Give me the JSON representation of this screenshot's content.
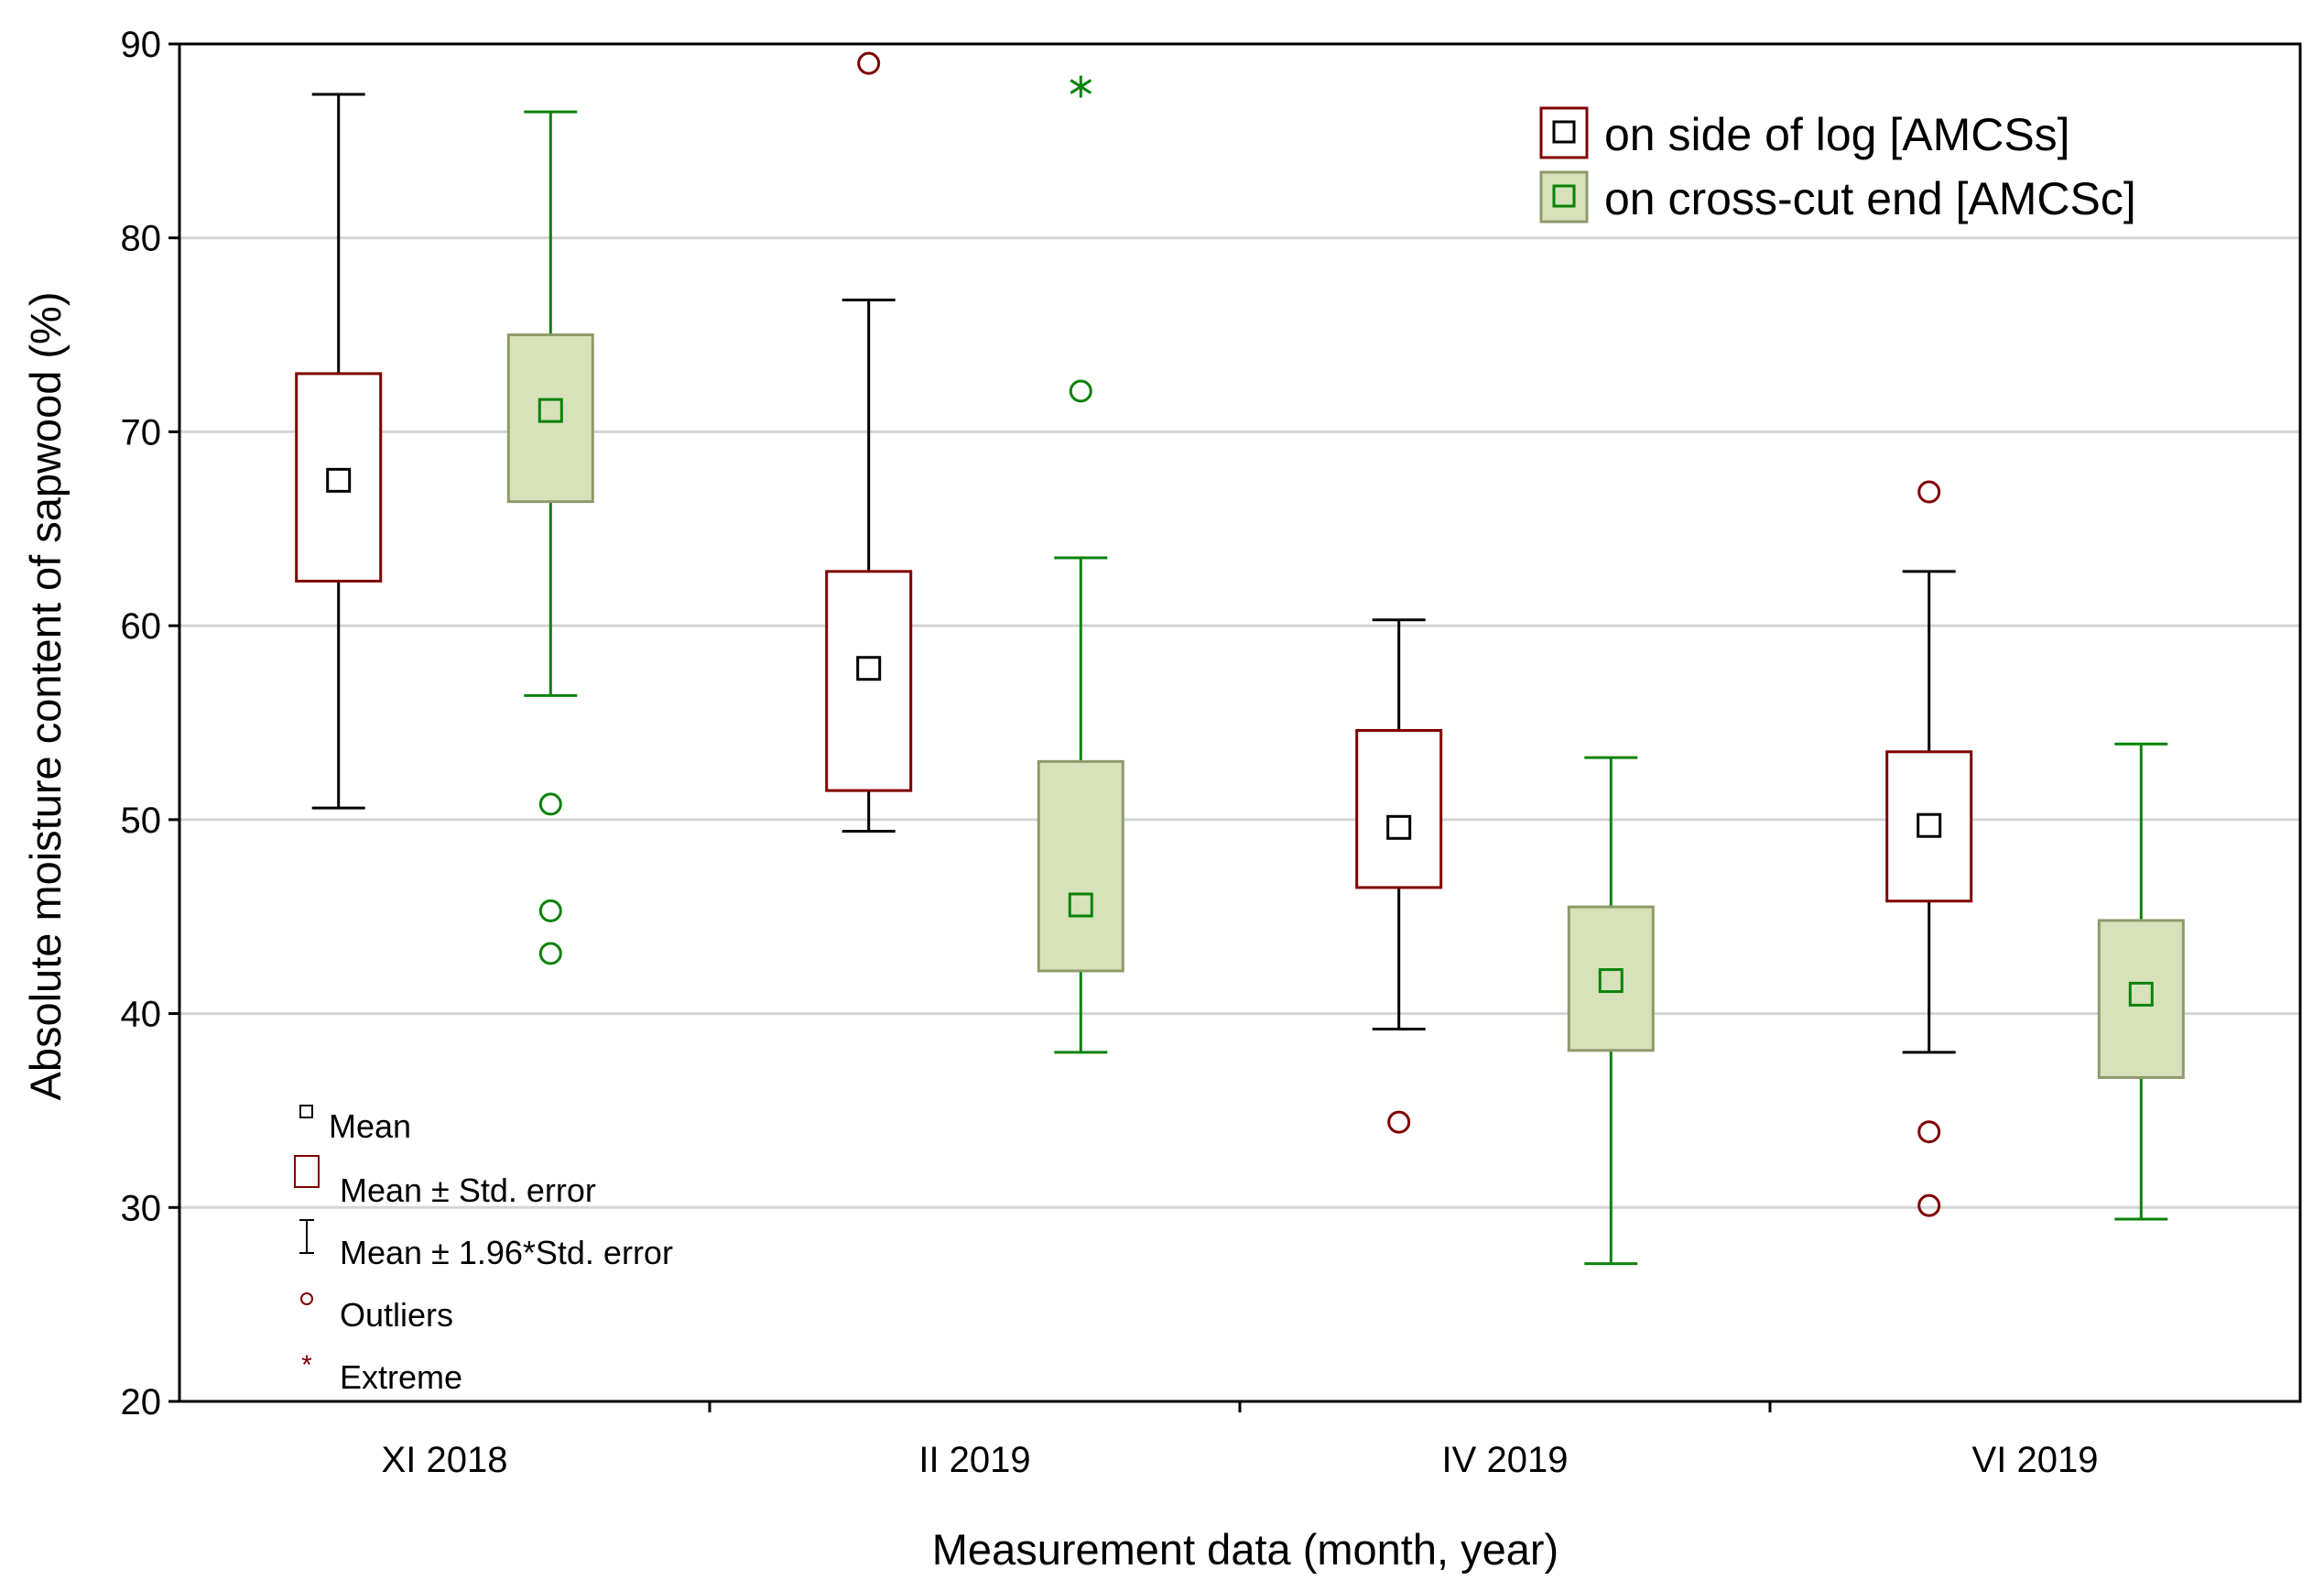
{
  "chart_data": {
    "type": "box",
    "title": "",
    "xlabel": "Measurement data (month, year)",
    "ylabel": "Absolute moisture content of sapwood (%)",
    "ylim": [
      20,
      90
    ],
    "yticks": [
      "20",
      "30",
      "40",
      "50",
      "60",
      "70",
      "80",
      "90"
    ],
    "categories": [
      "XI 2018",
      "II 2019",
      "IV 2019",
      "VI 2019"
    ],
    "grid": "horizontal",
    "legend_position": "top-right",
    "series": [
      {
        "name": "on side of log [AMCSs]",
        "box_color": "#7f0000",
        "box_fill": "#ffffff",
        "whisker_color": "#000000",
        "mean_color": "#000000",
        "outlier_color": "#7f0000",
        "values": [
          {
            "mean": 67.5,
            "box_low": 62.3,
            "box_high": 73.0,
            "whisker_low": 50.6,
            "whisker_high": 87.4,
            "outliers": [],
            "extremes": []
          },
          {
            "mean": 57.8,
            "box_low": 51.5,
            "box_high": 62.8,
            "whisker_low": 49.4,
            "whisker_high": 76.8,
            "outliers": [
              89.0
            ],
            "extremes": []
          },
          {
            "mean": 49.6,
            "box_low": 46.5,
            "box_high": 54.6,
            "whisker_low": 39.2,
            "whisker_high": 60.3,
            "outliers": [
              34.4
            ],
            "extremes": []
          },
          {
            "mean": 49.7,
            "box_low": 45.8,
            "box_high": 53.5,
            "whisker_low": 38.0,
            "whisker_high": 62.8,
            "outliers": [
              66.9,
              33.9,
              30.1
            ],
            "extremes": []
          }
        ]
      },
      {
        "name": "on cross-cut end [AMCSc]",
        "box_color": "#8f9a6a",
        "box_fill": "#d7e2bb",
        "whisker_color": "#0a820a",
        "mean_color": "#0a820a",
        "outlier_color": "#0a820a",
        "values": [
          {
            "mean": 71.1,
            "box_low": 66.4,
            "box_high": 75.0,
            "whisker_low": 56.4,
            "whisker_high": 86.5,
            "outliers": [
              50.8,
              45.3,
              43.1
            ],
            "extremes": []
          },
          {
            "mean": 45.6,
            "box_low": 42.2,
            "box_high": 53.0,
            "whisker_low": 38.0,
            "whisker_high": 63.5,
            "outliers": [
              72.1
            ],
            "extremes": [
              87.8
            ]
          },
          {
            "mean": 41.7,
            "box_low": 38.1,
            "box_high": 45.5,
            "whisker_low": 27.1,
            "whisker_high": 53.2,
            "outliers": [],
            "extremes": []
          },
          {
            "mean": 41.0,
            "box_low": 36.7,
            "box_high": 44.8,
            "whisker_low": 29.4,
            "whisker_high": 53.9,
            "outliers": [],
            "extremes": []
          }
        ]
      }
    ],
    "key": {
      "mean": "Mean",
      "std_error": "Mean ± Std. error",
      "ci": "Mean ±  1.96*Std. error",
      "outliers": "Outliers",
      "extreme": "Extreme"
    }
  }
}
